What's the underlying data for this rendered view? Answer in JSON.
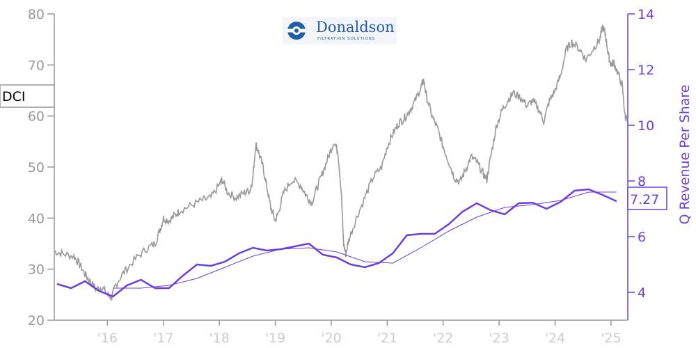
{
  "ticker": "DCI",
  "logo": {
    "name": "Donaldson",
    "tagline": "FILTRATION SOLUTIONS"
  },
  "colors": {
    "price": "#999999",
    "revenue": "#6b3fdc",
    "axis_left": "#999999",
    "axis_right": "#6b3fdc",
    "x_labels": "#cccccc",
    "logo": "#1f5fa8"
  },
  "chart_data": {
    "type": "line",
    "title": "",
    "xlabel": "",
    "x_ticks": [
      "'16",
      "'17",
      "'18",
      "'19",
      "'20",
      "'21",
      "'22",
      "'23",
      "'24",
      "'25"
    ],
    "xlim": [
      2015.05,
      2025.3
    ],
    "y_left": {
      "label": "",
      "lim": [
        20,
        80
      ],
      "ticks": [
        "20",
        "30",
        "40",
        "50",
        "60",
        "70",
        "80"
      ]
    },
    "y_right": {
      "label": "Q Revenue Per Share",
      "lim": [
        3,
        14
      ],
      "ticks": [
        "4",
        "6",
        "8",
        "10",
        "12",
        "14"
      ]
    },
    "last_value_label": "7.27",
    "series": [
      {
        "name": "DCI",
        "axis": "left",
        "points": [
          [
            2015.05,
            33.5
          ],
          [
            2015.2,
            33.0
          ],
          [
            2015.4,
            32.5
          ],
          [
            2015.5,
            31.0
          ],
          [
            2015.6,
            29.0
          ],
          [
            2015.7,
            27.5
          ],
          [
            2015.8,
            26.0
          ],
          [
            2015.9,
            26.5
          ],
          [
            2016.0,
            25.0
          ],
          [
            2016.08,
            24.5
          ],
          [
            2016.15,
            27.0
          ],
          [
            2016.3,
            29.5
          ],
          [
            2016.5,
            32.0
          ],
          [
            2016.7,
            34.0
          ],
          [
            2016.85,
            35.0
          ],
          [
            2016.95,
            38.0
          ],
          [
            2017.0,
            40.0
          ],
          [
            2017.1,
            39.5
          ],
          [
            2017.2,
            40.5
          ],
          [
            2017.3,
            41.5
          ],
          [
            2017.5,
            42.5
          ],
          [
            2017.7,
            43.5
          ],
          [
            2017.85,
            44.0
          ],
          [
            2018.0,
            46.5
          ],
          [
            2018.05,
            47.5
          ],
          [
            2018.15,
            45.0
          ],
          [
            2018.3,
            44.0
          ],
          [
            2018.45,
            45.0
          ],
          [
            2018.55,
            45.5
          ],
          [
            2018.6,
            48.0
          ],
          [
            2018.65,
            54.5
          ],
          [
            2018.7,
            53.0
          ],
          [
            2018.78,
            50.0
          ],
          [
            2018.85,
            46.0
          ],
          [
            2018.92,
            42.0
          ],
          [
            2019.0,
            39.5
          ],
          [
            2019.05,
            41.0
          ],
          [
            2019.15,
            45.0
          ],
          [
            2019.3,
            47.5
          ],
          [
            2019.45,
            46.5
          ],
          [
            2019.55,
            44.5
          ],
          [
            2019.65,
            43.0
          ],
          [
            2019.75,
            46.0
          ],
          [
            2019.85,
            49.0
          ],
          [
            2019.95,
            52.0
          ],
          [
            2020.05,
            55.0
          ],
          [
            2020.12,
            53.0
          ],
          [
            2020.18,
            45.0
          ],
          [
            2020.22,
            35.0
          ],
          [
            2020.26,
            33.0
          ],
          [
            2020.32,
            36.0
          ],
          [
            2020.45,
            40.0
          ],
          [
            2020.6,
            44.0
          ],
          [
            2020.75,
            48.0
          ],
          [
            2020.9,
            50.0
          ],
          [
            2021.0,
            54.0
          ],
          [
            2021.1,
            56.5
          ],
          [
            2021.2,
            58.5
          ],
          [
            2021.3,
            59.5
          ],
          [
            2021.4,
            61.0
          ],
          [
            2021.5,
            63.0
          ],
          [
            2021.6,
            65.5
          ],
          [
            2021.65,
            67.0
          ],
          [
            2021.7,
            64.0
          ],
          [
            2021.8,
            60.0
          ],
          [
            2021.9,
            57.5
          ],
          [
            2022.0,
            54.0
          ],
          [
            2022.1,
            51.0
          ],
          [
            2022.2,
            48.0
          ],
          [
            2022.3,
            47.0
          ],
          [
            2022.4,
            49.5
          ],
          [
            2022.5,
            52.0
          ],
          [
            2022.6,
            51.0
          ],
          [
            2022.7,
            49.0
          ],
          [
            2022.78,
            47.5
          ],
          [
            2022.85,
            52.0
          ],
          [
            2022.95,
            58.0
          ],
          [
            2023.05,
            61.0
          ],
          [
            2023.15,
            63.0
          ],
          [
            2023.25,
            64.5
          ],
          [
            2023.4,
            63.5
          ],
          [
            2023.5,
            62.0
          ],
          [
            2023.6,
            63.0
          ],
          [
            2023.7,
            61.5
          ],
          [
            2023.8,
            59.0
          ],
          [
            2023.9,
            63.0
          ],
          [
            2024.0,
            65.0
          ],
          [
            2024.1,
            68.0
          ],
          [
            2024.2,
            73.0
          ],
          [
            2024.3,
            74.5
          ],
          [
            2024.45,
            73.0
          ],
          [
            2024.55,
            71.0
          ],
          [
            2024.7,
            73.5
          ],
          [
            2024.8,
            75.0
          ],
          [
            2024.85,
            77.5
          ],
          [
            2024.9,
            76.0
          ],
          [
            2024.95,
            72.0
          ],
          [
            2025.0,
            70.0
          ],
          [
            2025.05,
            70.5
          ],
          [
            2025.12,
            68.5
          ],
          [
            2025.2,
            66.0
          ],
          [
            2025.25,
            60.0
          ],
          [
            2025.28,
            59.5
          ]
        ]
      },
      {
        "name": "Q Revenue Per Share",
        "axis": "right",
        "points": [
          [
            2015.1,
            4.3
          ],
          [
            2015.35,
            4.15
          ],
          [
            2015.6,
            4.4
          ],
          [
            2015.85,
            4.05
          ],
          [
            2016.1,
            3.85
          ],
          [
            2016.35,
            4.25
          ],
          [
            2016.6,
            4.45
          ],
          [
            2016.85,
            4.15
          ],
          [
            2017.1,
            4.15
          ],
          [
            2017.35,
            4.6
          ],
          [
            2017.6,
            5.0
          ],
          [
            2017.85,
            4.95
          ],
          [
            2018.1,
            5.1
          ],
          [
            2018.35,
            5.4
          ],
          [
            2018.6,
            5.6
          ],
          [
            2018.85,
            5.5
          ],
          [
            2019.1,
            5.55
          ],
          [
            2019.35,
            5.65
          ],
          [
            2019.6,
            5.75
          ],
          [
            2019.85,
            5.35
          ],
          [
            2020.1,
            5.25
          ],
          [
            2020.35,
            5.0
          ],
          [
            2020.6,
            4.9
          ],
          [
            2020.85,
            5.05
          ],
          [
            2021.1,
            5.4
          ],
          [
            2021.35,
            6.05
          ],
          [
            2021.6,
            6.1
          ],
          [
            2021.85,
            6.1
          ],
          [
            2022.1,
            6.45
          ],
          [
            2022.35,
            6.9
          ],
          [
            2022.6,
            7.2
          ],
          [
            2022.85,
            6.95
          ],
          [
            2023.1,
            6.8
          ],
          [
            2023.35,
            7.2
          ],
          [
            2023.6,
            7.22
          ],
          [
            2023.85,
            7.0
          ],
          [
            2024.1,
            7.25
          ],
          [
            2024.35,
            7.65
          ],
          [
            2024.6,
            7.7
          ],
          [
            2024.85,
            7.5
          ],
          [
            2025.1,
            7.27
          ]
        ]
      },
      {
        "name": "Q Revenue Per Share trend",
        "axis": "right",
        "points": [
          [
            2016.1,
            4.15
          ],
          [
            2016.6,
            4.15
          ],
          [
            2017.1,
            4.25
          ],
          [
            2017.6,
            4.5
          ],
          [
            2018.1,
            4.9
          ],
          [
            2018.6,
            5.3
          ],
          [
            2019.1,
            5.55
          ],
          [
            2019.6,
            5.6
          ],
          [
            2020.1,
            5.45
          ],
          [
            2020.6,
            5.1
          ],
          [
            2021.1,
            5.05
          ],
          [
            2021.6,
            5.6
          ],
          [
            2022.1,
            6.2
          ],
          [
            2022.6,
            6.7
          ],
          [
            2023.1,
            7.05
          ],
          [
            2023.6,
            7.15
          ],
          [
            2024.1,
            7.3
          ],
          [
            2024.6,
            7.6
          ],
          [
            2025.1,
            7.6
          ]
        ]
      }
    ]
  }
}
